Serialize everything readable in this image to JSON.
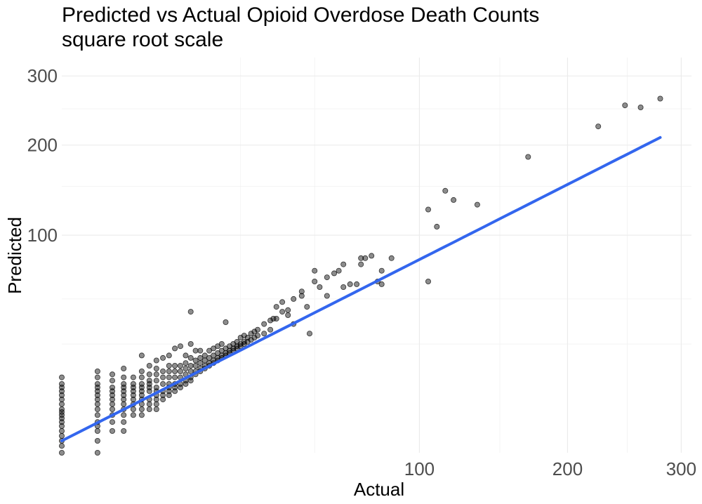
{
  "chart_data": {
    "type": "scatter",
    "title": "Predicted vs Actual Opioid Overdose Death Counts",
    "subtitle": "square root scale",
    "xlabel": "Actual",
    "ylabel": "Predicted",
    "x_scale": "sqrt",
    "y_scale": "sqrt",
    "xlim": [
      0,
      310
    ],
    "ylim": [
      0,
      330
    ],
    "x_ticks": [
      100,
      200,
      300
    ],
    "x_tick_labels": [
      "100",
      "200",
      "300"
    ],
    "x_minor_gridlines": [
      25,
      50,
      150,
      250
    ],
    "y_ticks": [
      100,
      200,
      300
    ],
    "y_tick_labels": [
      "100",
      "200",
      "300"
    ],
    "y_minor_gridlines": [
      25,
      50,
      150,
      250
    ],
    "grid": true,
    "theme": "minimal",
    "colors": {
      "points": "#000000",
      "fit_line": "#3366ee"
    },
    "fit_line": {
      "type": "linear (sqrt scale)",
      "x": [
        0,
        280
      ],
      "y": [
        0.3,
        210
      ]
    },
    "series": [
      {
        "x": [
          0,
          0,
          0,
          0,
          0,
          0,
          0,
          0,
          0,
          0,
          0,
          0,
          0,
          0,
          0,
          0,
          0,
          0,
          1,
          1,
          1,
          1,
          1,
          1,
          1,
          1,
          1,
          1,
          1,
          1,
          1,
          1,
          1,
          2,
          2,
          2,
          2,
          2,
          2,
          2,
          2,
          2,
          2,
          2,
          3,
          3,
          3,
          3,
          3,
          3,
          3,
          3,
          3,
          3,
          3,
          3,
          4,
          4,
          4,
          4,
          4,
          4,
          4,
          4,
          4,
          5,
          5,
          5,
          5,
          5,
          5,
          5,
          5,
          5,
          5,
          5,
          6,
          6,
          6,
          6,
          6,
          6,
          6,
          6,
          6,
          7,
          7,
          7,
          7,
          7,
          7,
          7,
          7,
          7,
          7,
          8,
          8,
          8,
          8,
          8,
          8,
          8,
          9,
          9,
          9,
          9,
          9,
          9,
          9,
          9,
          10,
          10,
          10,
          10,
          10,
          10,
          10,
          11,
          11,
          11,
          11,
          11,
          11,
          12,
          12,
          12,
          12,
          12,
          12,
          13,
          13,
          13,
          13,
          13,
          13,
          13,
          14,
          14,
          14,
          14,
          14,
          15,
          15,
          15,
          15,
          15,
          16,
          16,
          16,
          16,
          17,
          17,
          17,
          17,
          18,
          18,
          18,
          18,
          19,
          19,
          19,
          19,
          20,
          20,
          20,
          20,
          21,
          21,
          21,
          21,
          22,
          22,
          22,
          23,
          23,
          23,
          24,
          24,
          24,
          25,
          25,
          25,
          26,
          26,
          26,
          27,
          27,
          28,
          28,
          29,
          29,
          30,
          30,
          32,
          32,
          34,
          34,
          35,
          36,
          36,
          38,
          38,
          40,
          40,
          42,
          42,
          45,
          45,
          47,
          48,
          50,
          50,
          52,
          55,
          55,
          58,
          60,
          62,
          62,
          65,
          68,
          70,
          70,
          72,
          75,
          78,
          80,
          80,
          85,
          105,
          105,
          110,
          115,
          120,
          135,
          170,
          225,
          248,
          262,
          280
        ],
        "y": [
          0,
          0.1,
          0.3,
          0.6,
          1,
          1.5,
          2,
          2.5,
          3,
          3.5,
          4,
          5,
          6,
          7,
          8,
          9,
          10,
          12,
          0,
          0.3,
          1,
          1.5,
          2,
          3,
          4,
          5,
          6,
          7,
          8,
          9,
          10,
          12,
          14,
          1,
          2,
          3,
          4,
          5,
          6,
          7,
          8,
          9,
          11,
          13,
          1,
          2,
          3,
          4,
          5,
          6,
          7,
          8,
          9,
          10,
          12,
          15,
          3,
          4,
          5,
          6,
          7,
          8,
          9,
          10,
          12,
          3,
          4,
          5,
          6,
          7,
          8,
          9,
          10,
          12,
          14,
          20,
          4,
          5,
          6,
          8,
          9,
          10,
          11,
          13,
          16,
          4,
          5,
          6,
          7,
          8,
          9,
          11,
          13,
          15,
          18,
          6,
          7,
          8,
          10,
          12,
          14,
          19,
          7,
          8,
          9,
          10,
          12,
          14,
          16,
          20,
          8,
          9,
          10,
          12,
          14,
          16,
          23,
          9,
          10,
          12,
          14,
          16,
          24,
          10,
          11,
          13,
          15,
          17,
          20,
          11,
          12,
          14,
          16,
          19,
          25,
          42,
          13,
          14,
          16,
          18,
          22,
          14,
          15,
          17,
          19,
          22,
          15,
          16,
          18,
          20,
          16,
          17,
          19,
          22,
          17,
          18,
          20,
          23,
          18,
          19,
          21,
          24,
          19,
          20,
          22,
          25,
          20,
          21,
          23,
          36,
          21,
          22,
          24,
          22,
          23,
          25,
          23,
          24,
          26,
          24,
          25,
          28,
          25,
          26,
          29,
          26,
          28,
          27,
          30,
          28,
          31,
          29,
          32,
          30,
          35,
          32,
          37,
          38,
          38,
          45,
          42,
          48,
          43,
          40,
          35,
          50,
          55,
          52,
          45,
          30,
          62,
          70,
          58,
          65,
          52,
          68,
          70,
          75,
          58,
          60,
          60,
          75,
          80,
          80,
          82,
          62,
          60,
          70,
          80,
          62,
          125,
          108,
          145,
          135,
          130,
          185,
          225,
          255,
          252,
          265
        ]
      }
    ]
  }
}
